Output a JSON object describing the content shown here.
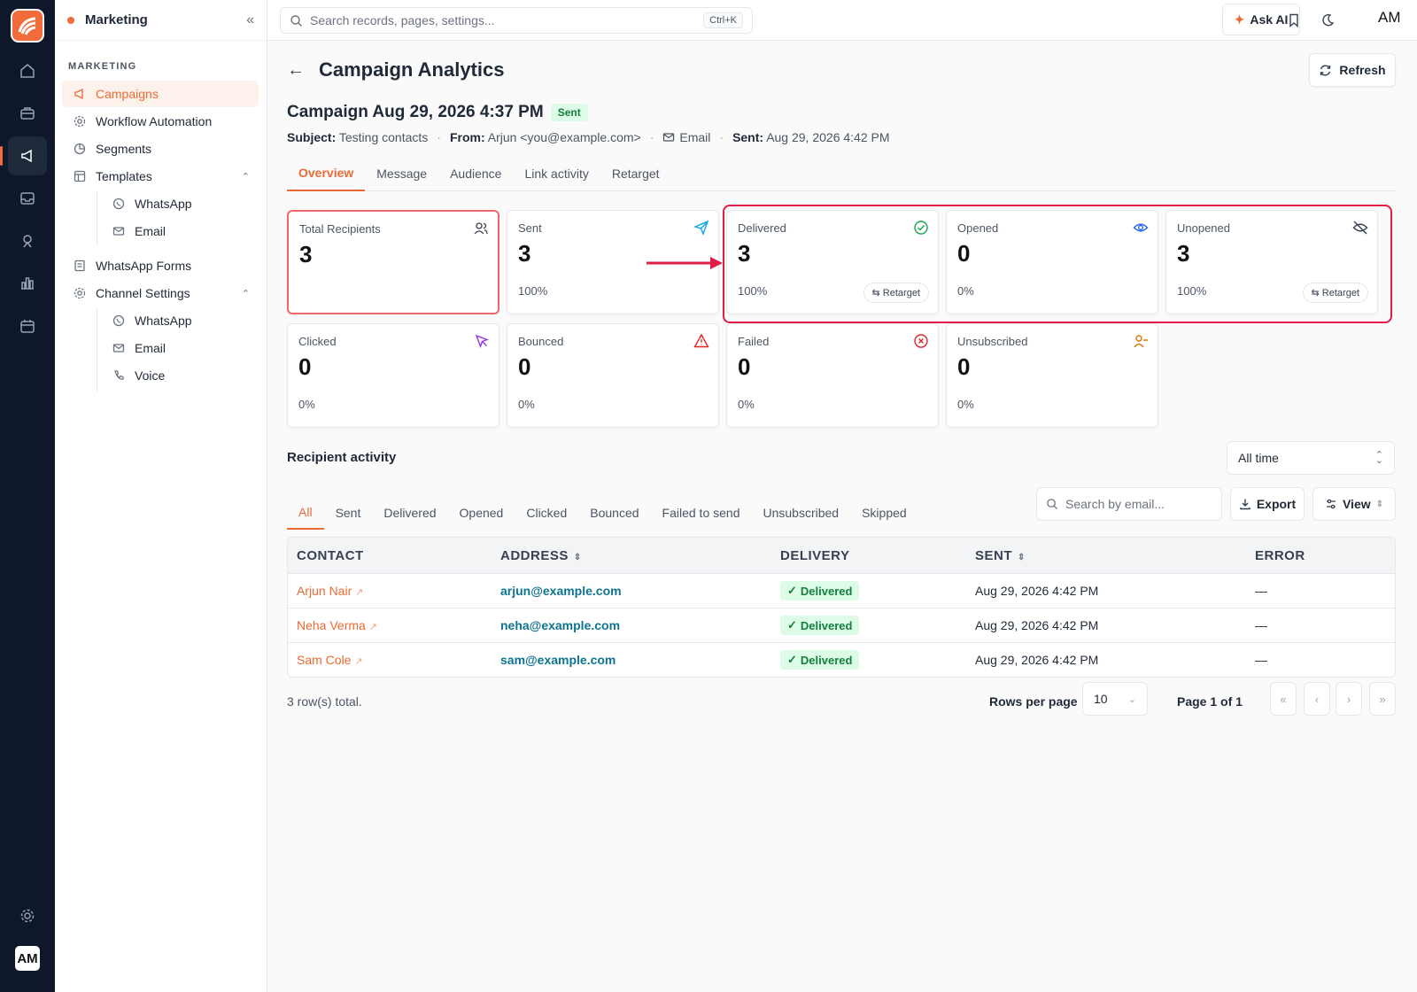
{
  "app": {
    "sidebar_title": "Marketing",
    "avatar_initials": "AM",
    "brand_color": "#f26b3a"
  },
  "sidebar": {
    "section": "MARKETING",
    "items": [
      {
        "label": "Campaigns",
        "icon": "megaphone-icon",
        "active": true
      },
      {
        "label": "Workflow Automation",
        "icon": "workflow-icon"
      },
      {
        "label": "Segments",
        "icon": "pie-icon"
      },
      {
        "label": "Templates",
        "icon": "template-icon",
        "children": [
          {
            "label": "WhatsApp",
            "icon": "whatsapp-icon"
          },
          {
            "label": "Email",
            "icon": "mail-icon"
          }
        ]
      },
      {
        "label": "WhatsApp Forms",
        "icon": "form-icon"
      },
      {
        "label": "Channel Settings",
        "icon": "settings-icon",
        "children": [
          {
            "label": "WhatsApp",
            "icon": "whatsapp-icon"
          },
          {
            "label": "Email",
            "icon": "mail-icon"
          },
          {
            "label": "Voice",
            "icon": "phone-icon"
          }
        ]
      }
    ]
  },
  "topbar": {
    "search_placeholder": "Search records, pages, settings...",
    "shortcut": "Ctrl+K",
    "ask_ai": "Ask AI",
    "avatar": "AM"
  },
  "page": {
    "title": "Campaign Analytics",
    "refresh": "Refresh",
    "campaign_title": "Campaign Aug 29, 2026 4:37 PM",
    "status": "Sent",
    "subject_label": "Subject:",
    "subject": "Testing contacts",
    "from_label": "From:",
    "from": "Arjun <you@example.com>",
    "channel": "Email",
    "sent_label": "Sent:",
    "sent": "Aug 29, 2026 4:42 PM",
    "tabs": [
      "Overview",
      "Message",
      "Audience",
      "Link activity",
      "Retarget"
    ]
  },
  "stats": [
    {
      "label": "Total Recipients",
      "value": "3",
      "pct": ""
    },
    {
      "label": "Sent",
      "value": "3",
      "pct": "100%"
    },
    {
      "label": "Delivered",
      "value": "3",
      "pct": "100%",
      "action": "Retarget"
    },
    {
      "label": "Opened",
      "value": "0",
      "pct": "0%"
    },
    {
      "label": "Unopened",
      "value": "3",
      "pct": "100%",
      "action": "Retarget"
    },
    {
      "label": "Clicked",
      "value": "0",
      "pct": "0%"
    },
    {
      "label": "Bounced",
      "value": "0",
      "pct": "0%"
    },
    {
      "label": "Failed",
      "value": "0",
      "pct": "0%"
    },
    {
      "label": "Unsubscribed",
      "value": "0",
      "pct": "0%"
    }
  ],
  "activity": {
    "title": "Recipient activity",
    "range": "All time",
    "filters": [
      "All",
      "Sent",
      "Delivered",
      "Opened",
      "Clicked",
      "Bounced",
      "Failed to send",
      "Unsubscribed",
      "Skipped"
    ],
    "search_placeholder": "Search by email...",
    "export": "Export",
    "view": "View",
    "columns": [
      "CONTACT",
      "ADDRESS",
      "DELIVERY",
      "SENT",
      "ERROR"
    ],
    "rows": [
      {
        "contact": "Arjun Nair",
        "address": "arjun@example.com",
        "delivery": "Delivered",
        "sent": "Aug 29, 2026 4:42 PM",
        "error": "—"
      },
      {
        "contact": "Neha Verma",
        "address": "neha@example.com",
        "delivery": "Delivered",
        "sent": "Aug 29, 2026 4:42 PM",
        "error": "—"
      },
      {
        "contact": "Sam Cole",
        "address": "sam@example.com",
        "delivery": "Delivered",
        "sent": "Aug 29, 2026 4:42 PM",
        "error": "—"
      }
    ],
    "total": "3 row(s) total.",
    "rows_per_page_label": "Rows per page",
    "rows_per_page": "10",
    "page_info": "Page 1 of 1"
  }
}
